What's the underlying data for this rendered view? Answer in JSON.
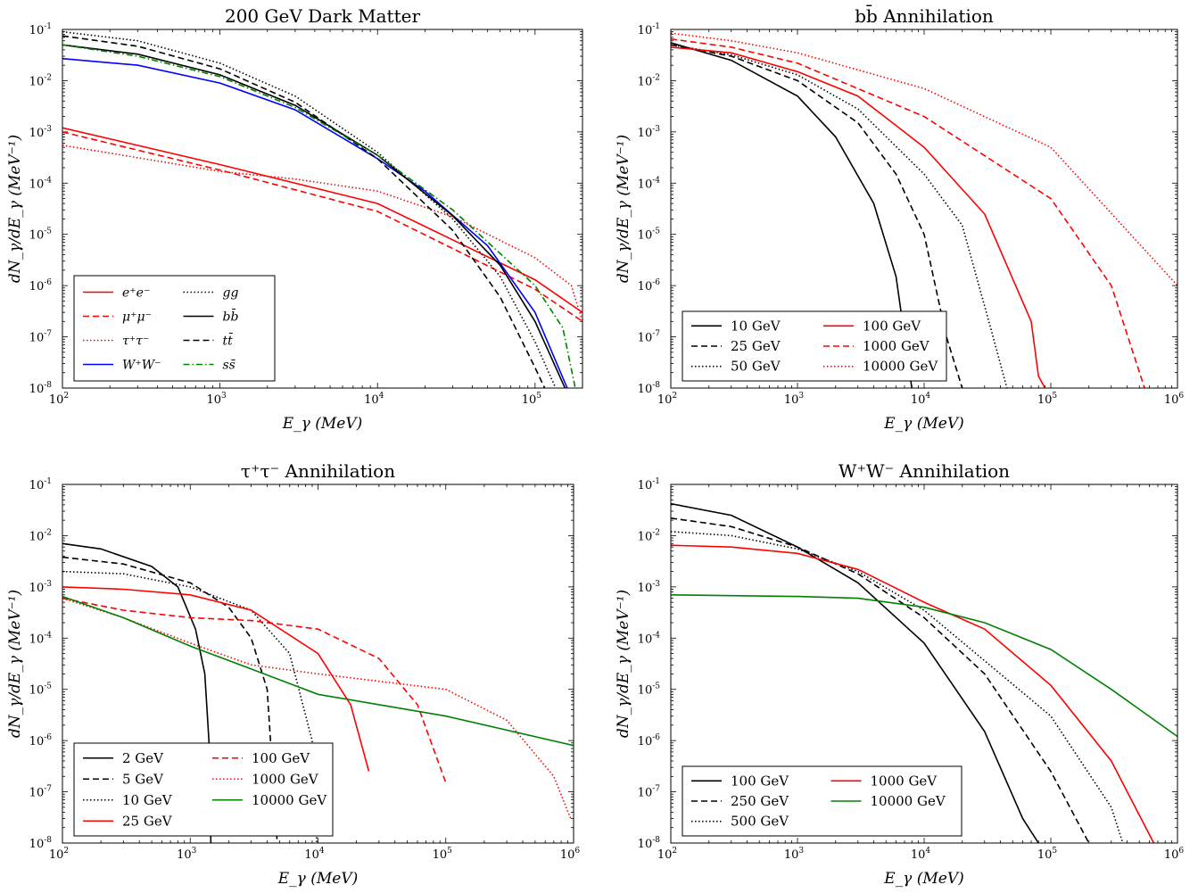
{
  "chart_data": [
    {
      "type": "line",
      "title": "200 GeV Dark Matter",
      "xlabel": "E_γ (MeV)",
      "ylabel": "dN_γ/dE_γ (MeV⁻¹)",
      "xscale": "log",
      "yscale": "log",
      "xlim": [
        100,
        200000
      ],
      "ylim": [
        1e-08,
        0.1
      ],
      "legend": "lower-left",
      "legend_cols": 2,
      "series": [
        {
          "name": "e⁺e⁻",
          "color": "#ff0000",
          "style": "solid",
          "points": [
            [
              100,
              0.0012
            ],
            [
              1000,
              0.00023
            ],
            [
              10000,
              4e-05
            ],
            [
              100000,
              1.3e-06
            ],
            [
              200000,
              3e-07
            ]
          ]
        },
        {
          "name": "μ⁺μ⁻",
          "color": "#ff0000",
          "style": "dashed",
          "points": [
            [
              100,
              0.001
            ],
            [
              1000,
              0.00018
            ],
            [
              10000,
              2.8e-05
            ],
            [
              100000,
              8.5e-07
            ],
            [
              200000,
              2e-07
            ]
          ]
        },
        {
          "name": "τ⁺τ⁻",
          "color": "#ff0000",
          "style": "dotted",
          "points": [
            [
              100,
              0.00055
            ],
            [
              1000,
              0.00017
            ],
            [
              3000,
              0.00012
            ],
            [
              10000,
              7e-05
            ],
            [
              30000,
              2.2e-05
            ],
            [
              100000,
              3.5e-06
            ],
            [
              170000,
              1e-06
            ],
            [
              200000,
              2e-07
            ]
          ]
        },
        {
          "name": "W⁺W⁻",
          "color": "#0000ff",
          "style": "solid",
          "points": [
            [
              100,
              0.027
            ],
            [
              300,
              0.02
            ],
            [
              1000,
              0.009
            ],
            [
              3000,
              0.0027
            ],
            [
              10000,
              0.0003
            ],
            [
              20000,
              7e-05
            ],
            [
              50000,
              6e-06
            ],
            [
              100000,
              3e-07
            ],
            [
              160000,
              1e-08
            ]
          ]
        },
        {
          "name": "gg",
          "color": "#000000",
          "style": "dotted",
          "points": [
            [
              100,
              0.09
            ],
            [
              300,
              0.06
            ],
            [
              1000,
              0.022
            ],
            [
              3000,
              0.005
            ],
            [
              10000,
              0.0004
            ],
            [
              30000,
              2e-05
            ],
            [
              60000,
              1.5e-06
            ],
            [
              100000,
              8e-08
            ],
            [
              135000,
              1e-08
            ]
          ]
        },
        {
          "name": "bb̄",
          "color": "#000000",
          "style": "solid",
          "points": [
            [
              100,
              0.05
            ],
            [
              300,
              0.033
            ],
            [
              1000,
              0.013
            ],
            [
              3000,
              0.0033
            ],
            [
              10000,
              0.00035
            ],
            [
              30000,
              2.3e-05
            ],
            [
              60000,
              2.5e-06
            ],
            [
              100000,
              2e-07
            ],
            [
              155000,
              1e-08
            ]
          ]
        },
        {
          "name": "tt̄",
          "color": "#000000",
          "style": "dashed",
          "points": [
            [
              100,
              0.075
            ],
            [
              300,
              0.047
            ],
            [
              1000,
              0.017
            ],
            [
              3000,
              0.0038
            ],
            [
              10000,
              0.0003
            ],
            [
              30000,
              1.2e-05
            ],
            [
              60000,
              6e-07
            ],
            [
              100000,
              2.5e-08
            ],
            [
              115000,
              1e-08
            ]
          ]
        },
        {
          "name": "ss̄",
          "color": "#008000",
          "style": "dashdot",
          "points": [
            [
              100,
              0.05
            ],
            [
              300,
              0.03
            ],
            [
              1000,
              0.012
            ],
            [
              3000,
              0.003
            ],
            [
              10000,
              0.00035
            ],
            [
              30000,
              3e-05
            ],
            [
              100000,
              1e-06
            ],
            [
              150000,
              1.5e-07
            ],
            [
              180000,
              1e-08
            ]
          ]
        }
      ]
    },
    {
      "type": "line",
      "title": "bb̄ Annihilation",
      "xlabel": "E_γ (MeV)",
      "ylabel": "dN_γ/dE_γ (MeV⁻¹)",
      "xscale": "log",
      "yscale": "log",
      "xlim": [
        100,
        1000000
      ],
      "ylim": [
        1e-08,
        0.1
      ],
      "legend": "lower-left",
      "legend_cols": 2,
      "series": [
        {
          "name": "10 GeV",
          "color": "#000000",
          "style": "solid",
          "points": [
            [
              100,
              0.055
            ],
            [
              300,
              0.025
            ],
            [
              1000,
              0.005
            ],
            [
              2000,
              0.0008
            ],
            [
              4000,
              4e-05
            ],
            [
              6000,
              1.5e-06
            ],
            [
              8000,
              1e-08
            ]
          ]
        },
        {
          "name": "25 GeV",
          "color": "#000000",
          "style": "dashed",
          "points": [
            [
              100,
              0.05
            ],
            [
              300,
              0.03
            ],
            [
              1000,
              0.01
            ],
            [
              3000,
              0.0015
            ],
            [
              6000,
              0.00015
            ],
            [
              10000,
              1e-05
            ],
            [
              15000,
              1e-07
            ],
            [
              20000,
              1e-08
            ]
          ]
        },
        {
          "name": "50 GeV",
          "color": "#000000",
          "style": "dotted",
          "points": [
            [
              100,
              0.05
            ],
            [
              300,
              0.032
            ],
            [
              1000,
              0.013
            ],
            [
              3000,
              0.0028
            ],
            [
              10000,
              0.00015
            ],
            [
              20000,
              1.5e-05
            ],
            [
              35000,
              1e-07
            ],
            [
              45000,
              1e-08
            ]
          ]
        },
        {
          "name": "100 GeV",
          "color": "#ff0000",
          "style": "solid",
          "points": [
            [
              100,
              0.045
            ],
            [
              300,
              0.035
            ],
            [
              1000,
              0.015
            ],
            [
              3000,
              0.005
            ],
            [
              10000,
              0.0005
            ],
            [
              30000,
              2.5e-05
            ],
            [
              70000,
              2e-07
            ],
            [
              80000,
              1.7e-08
            ],
            [
              90000,
              1e-08
            ]
          ]
        },
        {
          "name": "1000 GeV",
          "color": "#ff0000",
          "style": "dashed",
          "points": [
            [
              100,
              0.065
            ],
            [
              300,
              0.045
            ],
            [
              1000,
              0.022
            ],
            [
              10000,
              0.002
            ],
            [
              100000,
              5e-05
            ],
            [
              300000,
              1e-06
            ],
            [
              550000,
              1e-08
            ]
          ]
        },
        {
          "name": "10000 GeV",
          "color": "#ff0000",
          "style": "dotted",
          "points": [
            [
              100,
              0.085
            ],
            [
              300,
              0.06
            ],
            [
              1000,
              0.035
            ],
            [
              10000,
              0.007
            ],
            [
              100000,
              0.0005
            ],
            [
              1000000,
              1e-06
            ]
          ]
        }
      ]
    },
    {
      "type": "line",
      "title": "τ⁺τ⁻ Annihilation",
      "xlabel": "E_γ (MeV)",
      "ylabel": "dN_γ/dE_γ (MeV⁻¹)",
      "xscale": "log",
      "yscale": "log",
      "xlim": [
        100,
        1000000
      ],
      "ylim": [
        1e-08,
        0.1
      ],
      "legend": "lower-left",
      "legend_cols": 2,
      "series": [
        {
          "name": "2 GeV",
          "color": "#000000",
          "style": "solid",
          "points": [
            [
              100,
              0.007
            ],
            [
              200,
              0.0055
            ],
            [
              500,
              0.0025
            ],
            [
              800,
              0.001
            ],
            [
              1100,
              0.00015
            ],
            [
              1300,
              2e-05
            ],
            [
              1400,
              1e-06
            ],
            [
              1450,
              1e-08
            ]
          ]
        },
        {
          "name": "5 GeV",
          "color": "#000000",
          "style": "dashed",
          "points": [
            [
              100,
              0.0038
            ],
            [
              300,
              0.0028
            ],
            [
              1000,
              0.0012
            ],
            [
              2000,
              0.0004
            ],
            [
              3000,
              0.0001
            ],
            [
              4000,
              1e-05
            ],
            [
              4800,
              1e-08
            ]
          ]
        },
        {
          "name": "10 GeV",
          "color": "#000000",
          "style": "dotted",
          "points": [
            [
              100,
              0.002
            ],
            [
              300,
              0.0018
            ],
            [
              1000,
              0.001
            ],
            [
              3000,
              0.00035
            ],
            [
              6000,
              5e-05
            ],
            [
              9000,
              1e-06
            ],
            [
              9800,
              1e-08
            ]
          ]
        },
        {
          "name": "25 GeV",
          "color": "#ff0000",
          "style": "solid",
          "points": [
            [
              100,
              0.001
            ],
            [
              300,
              0.0009
            ],
            [
              1000,
              0.0007
            ],
            [
              3000,
              0.00035
            ],
            [
              10000,
              5e-05
            ],
            [
              18000,
              5e-06
            ],
            [
              25000,
              2.5e-07
            ]
          ]
        },
        {
          "name": "100 GeV",
          "color": "#ff0000",
          "style": "dashed",
          "points": [
            [
              100,
              0.0006
            ],
            [
              300,
              0.00035
            ],
            [
              1000,
              0.00025
            ],
            [
              3000,
              0.00022
            ],
            [
              10000,
              0.00015
            ],
            [
              30000,
              4e-05
            ],
            [
              60000,
              5e-06
            ],
            [
              100000,
              1.5e-07
            ]
          ]
        },
        {
          "name": "1000 GeV",
          "color": "#ff0000",
          "style": "dotted",
          "points": [
            [
              100,
              0.0006
            ],
            [
              300,
              0.00025
            ],
            [
              1000,
              8e-05
            ],
            [
              3000,
              3e-05
            ],
            [
              10000,
              2e-05
            ],
            [
              100000,
              1e-05
            ],
            [
              300000,
              2.5e-06
            ],
            [
              700000,
              2e-07
            ],
            [
              950000,
              3e-08
            ]
          ]
        },
        {
          "name": "10000 GeV",
          "color": "#008000",
          "style": "solid",
          "points": [
            [
              100,
              0.00065
            ],
            [
              300,
              0.00025
            ],
            [
              1000,
              7e-05
            ],
            [
              3000,
              2.5e-05
            ],
            [
              10000,
              8e-06
            ],
            [
              100000,
              3e-06
            ],
            [
              1000000,
              8e-07
            ]
          ]
        }
      ]
    },
    {
      "type": "line",
      "title": "W⁺W⁻ Annihilation",
      "xlabel": "E_γ (MeV)",
      "ylabel": "dN_γ/dE_γ (MeV⁻¹)",
      "xscale": "log",
      "yscale": "log",
      "xlim": [
        100,
        1000000
      ],
      "ylim": [
        1e-08,
        0.1
      ],
      "legend": "lower-left",
      "legend_cols": 2,
      "series": [
        {
          "name": "100 GeV",
          "color": "#000000",
          "style": "solid",
          "points": [
            [
              100,
              0.042
            ],
            [
              300,
              0.025
            ],
            [
              1000,
              0.006
            ],
            [
              3000,
              0.0012
            ],
            [
              10000,
              8e-05
            ],
            [
              30000,
              1.5e-06
            ],
            [
              60000,
              3e-08
            ],
            [
              80000,
              1e-08
            ]
          ]
        },
        {
          "name": "250 GeV",
          "color": "#000000",
          "style": "dashed",
          "points": [
            [
              100,
              0.022
            ],
            [
              300,
              0.015
            ],
            [
              1000,
              0.006
            ],
            [
              3000,
              0.0018
            ],
            [
              10000,
              0.00025
            ],
            [
              30000,
              2e-05
            ],
            [
              100000,
              2.5e-07
            ],
            [
              200000,
              1e-08
            ]
          ]
        },
        {
          "name": "500 GeV",
          "color": "#000000",
          "style": "dotted",
          "points": [
            [
              100,
              0.012
            ],
            [
              300,
              0.01
            ],
            [
              1000,
              0.0055
            ],
            [
              3000,
              0.002
            ],
            [
              10000,
              0.00035
            ],
            [
              100000,
              3e-06
            ],
            [
              300000,
              5e-08
            ],
            [
              370000,
              1e-08
            ]
          ]
        },
        {
          "name": "1000 GeV",
          "color": "#ff0000",
          "style": "solid",
          "points": [
            [
              100,
              0.0065
            ],
            [
              300,
              0.006
            ],
            [
              1000,
              0.0045
            ],
            [
              3000,
              0.0022
            ],
            [
              10000,
              0.0005
            ],
            [
              30000,
              0.00015
            ],
            [
              100000,
              1.2e-05
            ],
            [
              300000,
              4e-07
            ],
            [
              650000,
              1e-08
            ]
          ]
        },
        {
          "name": "10000 GeV",
          "color": "#008000",
          "style": "solid",
          "points": [
            [
              100,
              0.0007
            ],
            [
              1000,
              0.00065
            ],
            [
              3000,
              0.0006
            ],
            [
              10000,
              0.0004
            ],
            [
              30000,
              0.0002
            ],
            [
              100000,
              6e-05
            ],
            [
              300000,
              1e-05
            ],
            [
              1000000,
              1.2e-06
            ]
          ]
        }
      ]
    }
  ]
}
